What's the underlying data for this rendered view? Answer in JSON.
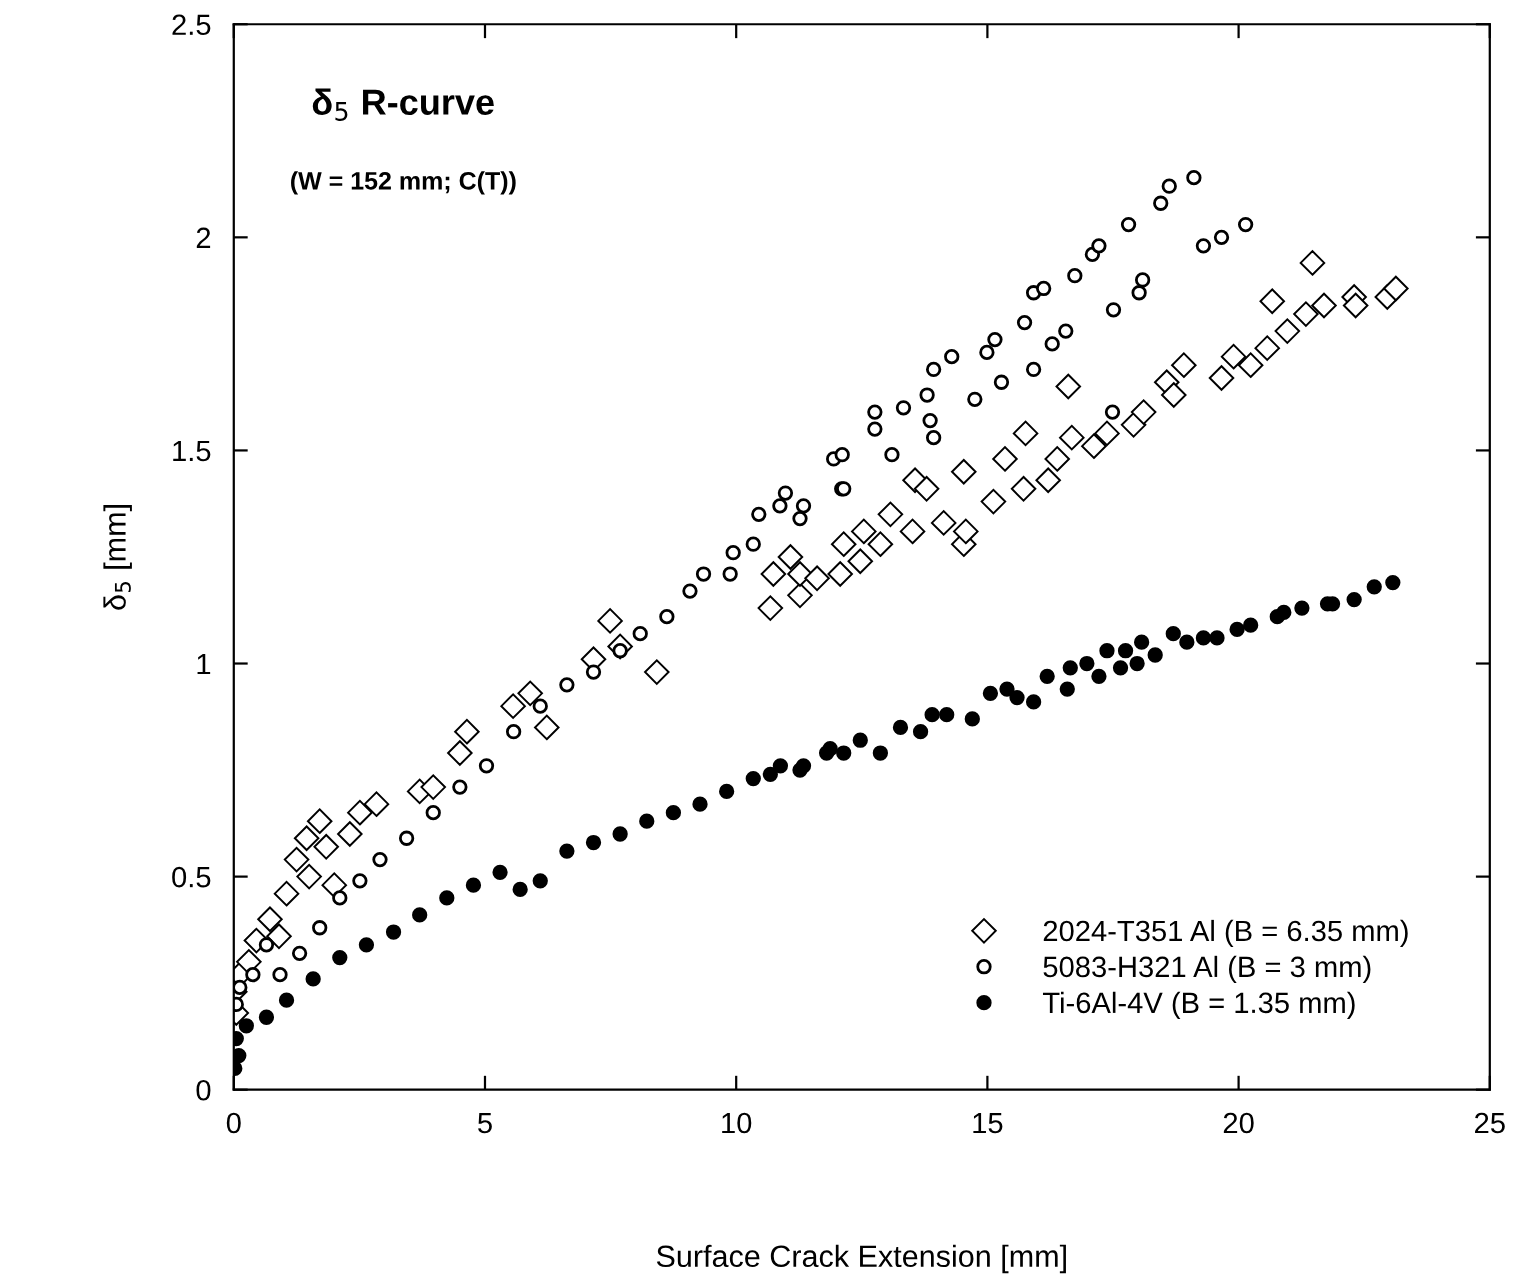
{
  "chart_data": {
    "type": "scatter",
    "title": "δ$_{5}$ R-curve",
    "subtitle": "(W = 152 mm; C(T))",
    "xlabel": "Surface Crack Extension [mm]",
    "ylabel": "δ$_{5}$ [mm]",
    "xlim": [
      0,
      25
    ],
    "ylim": [
      0,
      2.5
    ],
    "xticks": [
      0,
      5,
      10,
      15,
      20,
      25
    ],
    "yticks": [
      0,
      {
        "value": 0.5,
        "label": "0.5"
      },
      1,
      {
        "value": 1.5,
        "label": "1.5"
      },
      2,
      {
        "value": 2.5,
        "label": "2.5"
      }
    ],
    "grid": false,
    "legend": "bottom right",
    "series": [
      {
        "name": "2024-T351 Al (B = 6.35 mm)",
        "color": "#ffffff",
        "marker": "diamond",
        "x": [
          0.02,
          0.05,
          0.12,
          0.3,
          0.45,
          0.72,
          0.9,
          1.05,
          1.25,
          1.45,
          1.5,
          1.71,
          1.84,
          2.0,
          2.31,
          2.51,
          2.84,
          3.7,
          3.97,
          4.5,
          4.64,
          5.56,
          5.9,
          6.23,
          7.16,
          7.49,
          7.69,
          8.42,
          10.68,
          10.74,
          11.08,
          11.27,
          11.27,
          11.61,
          12.07,
          12.14,
          12.47,
          12.54,
          12.87,
          13.07,
          13.51,
          13.56,
          13.79,
          14.13,
          14.53,
          14.53,
          14.57,
          15.12,
          15.35,
          15.72,
          15.76,
          16.21,
          16.39,
          16.61,
          16.68,
          17.12,
          17.38,
          17.91,
          18.11,
          18.57,
          18.71,
          18.91,
          19.66,
          19.9,
          20.24,
          20.57,
          20.67,
          20.97,
          21.34,
          21.47,
          21.7,
          22.3,
          22.33,
          22.96,
          23.13
        ],
        "values": [
          0.23,
          0.18,
          0.27,
          0.3,
          0.35,
          0.4,
          0.36,
          0.46,
          0.54,
          0.59,
          0.5,
          0.63,
          0.57,
          0.48,
          0.6,
          0.65,
          0.67,
          0.7,
          0.71,
          0.79,
          0.84,
          0.9,
          0.93,
          0.85,
          1.01,
          1.1,
          1.04,
          0.98,
          1.13,
          1.21,
          1.25,
          1.16,
          1.21,
          1.2,
          1.21,
          1.28,
          1.24,
          1.31,
          1.28,
          1.35,
          1.31,
          1.43,
          1.41,
          1.33,
          1.28,
          1.45,
          1.31,
          1.38,
          1.48,
          1.41,
          1.54,
          1.43,
          1.48,
          1.65,
          1.53,
          1.51,
          1.54,
          1.56,
          1.59,
          1.66,
          1.63,
          1.7,
          1.67,
          1.72,
          1.7,
          1.74,
          1.85,
          1.78,
          1.82,
          1.94,
          1.84,
          1.86,
          1.84,
          1.86,
          1.88
        ]
      },
      {
        "name": "5083-H321 Al (B = 3 mm)",
        "color": "#ffffff",
        "marker": "circle",
        "x": [
          0.05,
          0.12,
          0.38,
          0.65,
          0.92,
          1.31,
          1.71,
          2.11,
          2.51,
          2.91,
          3.44,
          3.97,
          4.5,
          5.03,
          5.57,
          6.1,
          6.63,
          7.16,
          7.69,
          8.09,
          8.62,
          9.08,
          9.35,
          9.88,
          9.94,
          10.34,
          10.45,
          10.87,
          10.98,
          11.27,
          11.34,
          11.94,
          12.1,
          12.11,
          12.14,
          12.76,
          12.76,
          13.1,
          13.33,
          13.8,
          13.86,
          13.93,
          13.93,
          14.29,
          14.75,
          14.99,
          15.15,
          15.28,
          15.74,
          15.92,
          15.92,
          16.12,
          16.29,
          16.56,
          16.74,
          17.09,
          17.22,
          17.49,
          17.51,
          17.81,
          18.02,
          18.09,
          18.45,
          18.62,
          19.11,
          19.3,
          19.66,
          20.14
        ],
        "values": [
          0.2,
          0.24,
          0.27,
          0.34,
          0.27,
          0.32,
          0.38,
          0.45,
          0.49,
          0.54,
          0.59,
          0.65,
          0.71,
          0.76,
          0.84,
          0.9,
          0.95,
          0.98,
          1.03,
          1.07,
          1.11,
          1.17,
          1.21,
          1.21,
          1.26,
          1.28,
          1.35,
          1.37,
          1.4,
          1.34,
          1.37,
          1.48,
          1.41,
          1.49,
          1.41,
          1.59,
          1.55,
          1.49,
          1.6,
          1.63,
          1.57,
          1.53,
          1.69,
          1.72,
          1.62,
          1.73,
          1.76,
          1.66,
          1.8,
          1.87,
          1.69,
          1.88,
          1.75,
          1.78,
          1.91,
          1.96,
          1.98,
          1.59,
          1.83,
          2.03,
          1.87,
          1.9,
          2.08,
          2.12,
          2.14,
          1.98,
          2.0,
          2.03
        ]
      },
      {
        "name": "Ti-6Al-4V (B = 1.35 mm)",
        "color": "#000000",
        "marker": "circle",
        "x": [
          0.02,
          0.1,
          0.05,
          0.25,
          0.65,
          1.05,
          1.58,
          2.11,
          2.64,
          3.18,
          3.7,
          4.24,
          4.77,
          5.3,
          5.7,
          6.1,
          6.63,
          7.16,
          7.69,
          8.22,
          8.75,
          9.28,
          9.81,
          10.34,
          10.68,
          10.88,
          11.27,
          11.34,
          11.8,
          11.87,
          12.14,
          12.47,
          12.87,
          13.27,
          13.67,
          13.9,
          14.19,
          14.7,
          15.06,
          15.39,
          15.59,
          15.92,
          16.19,
          16.59,
          16.65,
          16.98,
          17.22,
          17.38,
          17.65,
          17.75,
          17.98,
          18.07,
          18.34,
          18.7,
          18.97,
          19.3,
          19.57,
          19.97,
          20.24,
          20.77,
          20.9,
          21.26,
          21.77,
          21.87,
          22.3,
          22.7,
          23.07
        ],
        "values": [
          0.05,
          0.08,
          0.12,
          0.15,
          0.17,
          0.21,
          0.26,
          0.31,
          0.34,
          0.37,
          0.41,
          0.45,
          0.48,
          0.51,
          0.47,
          0.49,
          0.56,
          0.58,
          0.6,
          0.63,
          0.65,
          0.67,
          0.7,
          0.73,
          0.74,
          0.76,
          0.75,
          0.76,
          0.79,
          0.8,
          0.79,
          0.82,
          0.79,
          0.85,
          0.84,
          0.88,
          0.88,
          0.87,
          0.93,
          0.94,
          0.92,
          0.91,
          0.97,
          0.94,
          0.99,
          1.0,
          0.97,
          1.03,
          0.99,
          1.03,
          1.0,
          1.05,
          1.02,
          1.07,
          1.05,
          1.06,
          1.06,
          1.08,
          1.09,
          1.11,
          1.12,
          1.13,
          1.14,
          1.14,
          1.15,
          1.18,
          1.19
        ]
      }
    ]
  }
}
